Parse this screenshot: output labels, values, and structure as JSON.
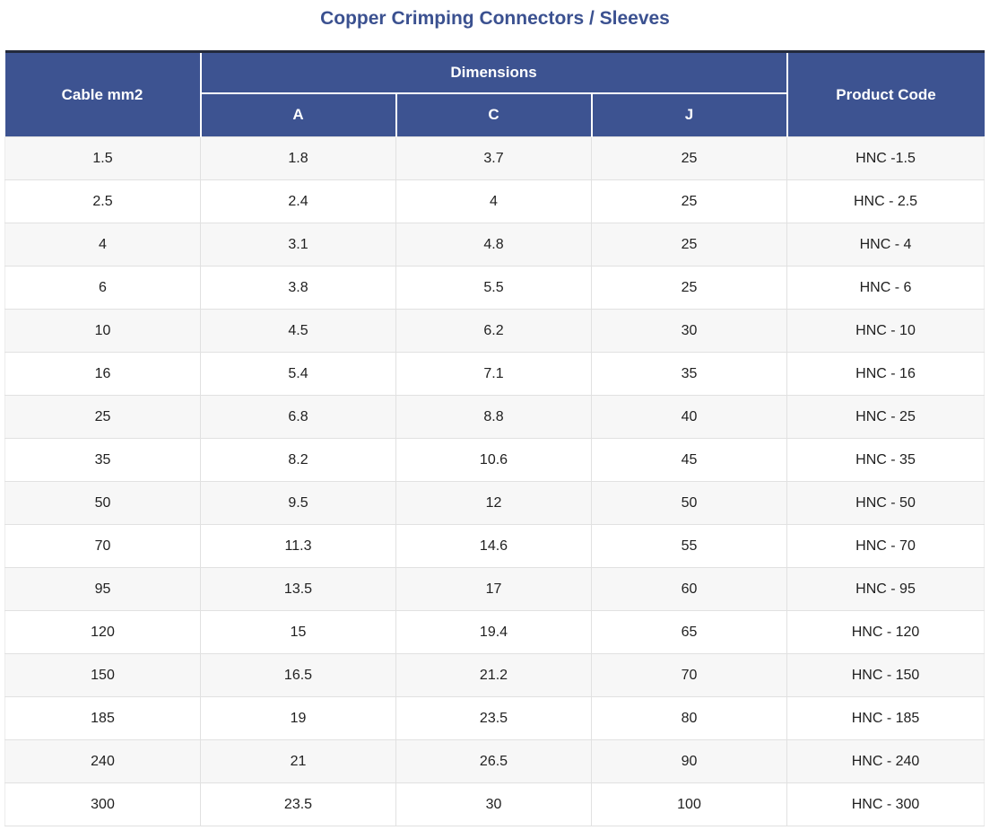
{
  "title": "Copper Crimping Connectors / Sleeves",
  "colors": {
    "header_bg": "#3d5391",
    "header_text": "#ffffff",
    "table_top_border": "#232a3c",
    "title_text": "#3b5190",
    "row_stripe": "#f7f7f7",
    "cell_border": "#e1e1e1",
    "body_text": "#212121"
  },
  "chart_data": {
    "type": "table",
    "title": "Copper Crimping Connectors / Sleeves",
    "columns": [
      "Cable mm2",
      "A",
      "C",
      "J",
      "Product Code"
    ],
    "column_groups": [
      {
        "label": "Dimensions",
        "spans": [
          "A",
          "C",
          "J"
        ]
      }
    ],
    "rows": [
      [
        "1.5",
        "1.8",
        "3.7",
        "25",
        "HNC -1.5"
      ],
      [
        "2.5",
        "2.4",
        "4",
        "25",
        "HNC - 2.5"
      ],
      [
        "4",
        "3.1",
        "4.8",
        "25",
        "HNC - 4"
      ],
      [
        "6",
        "3.8",
        "5.5",
        "25",
        "HNC - 6"
      ],
      [
        "10",
        "4.5",
        "6.2",
        "30",
        "HNC - 10"
      ],
      [
        "16",
        "5.4",
        "7.1",
        "35",
        "HNC - 16"
      ],
      [
        "25",
        "6.8",
        "8.8",
        "40",
        "HNC - 25"
      ],
      [
        "35",
        "8.2",
        "10.6",
        "45",
        "HNC - 35"
      ],
      [
        "50",
        "9.5",
        "12",
        "50",
        "HNC - 50"
      ],
      [
        "70",
        "11.3",
        "14.6",
        "55",
        "HNC - 70"
      ],
      [
        "95",
        "13.5",
        "17",
        "60",
        "HNC - 95"
      ],
      [
        "120",
        "15",
        "19.4",
        "65",
        "HNC - 120"
      ],
      [
        "150",
        "16.5",
        "21.2",
        "70",
        "HNC - 150"
      ],
      [
        "185",
        "19",
        "23.5",
        "80",
        "HNC - 185"
      ],
      [
        "240",
        "21",
        "26.5",
        "90",
        "HNC - 240"
      ],
      [
        "300",
        "23.5",
        "30",
        "100",
        "HNC - 300"
      ]
    ]
  }
}
